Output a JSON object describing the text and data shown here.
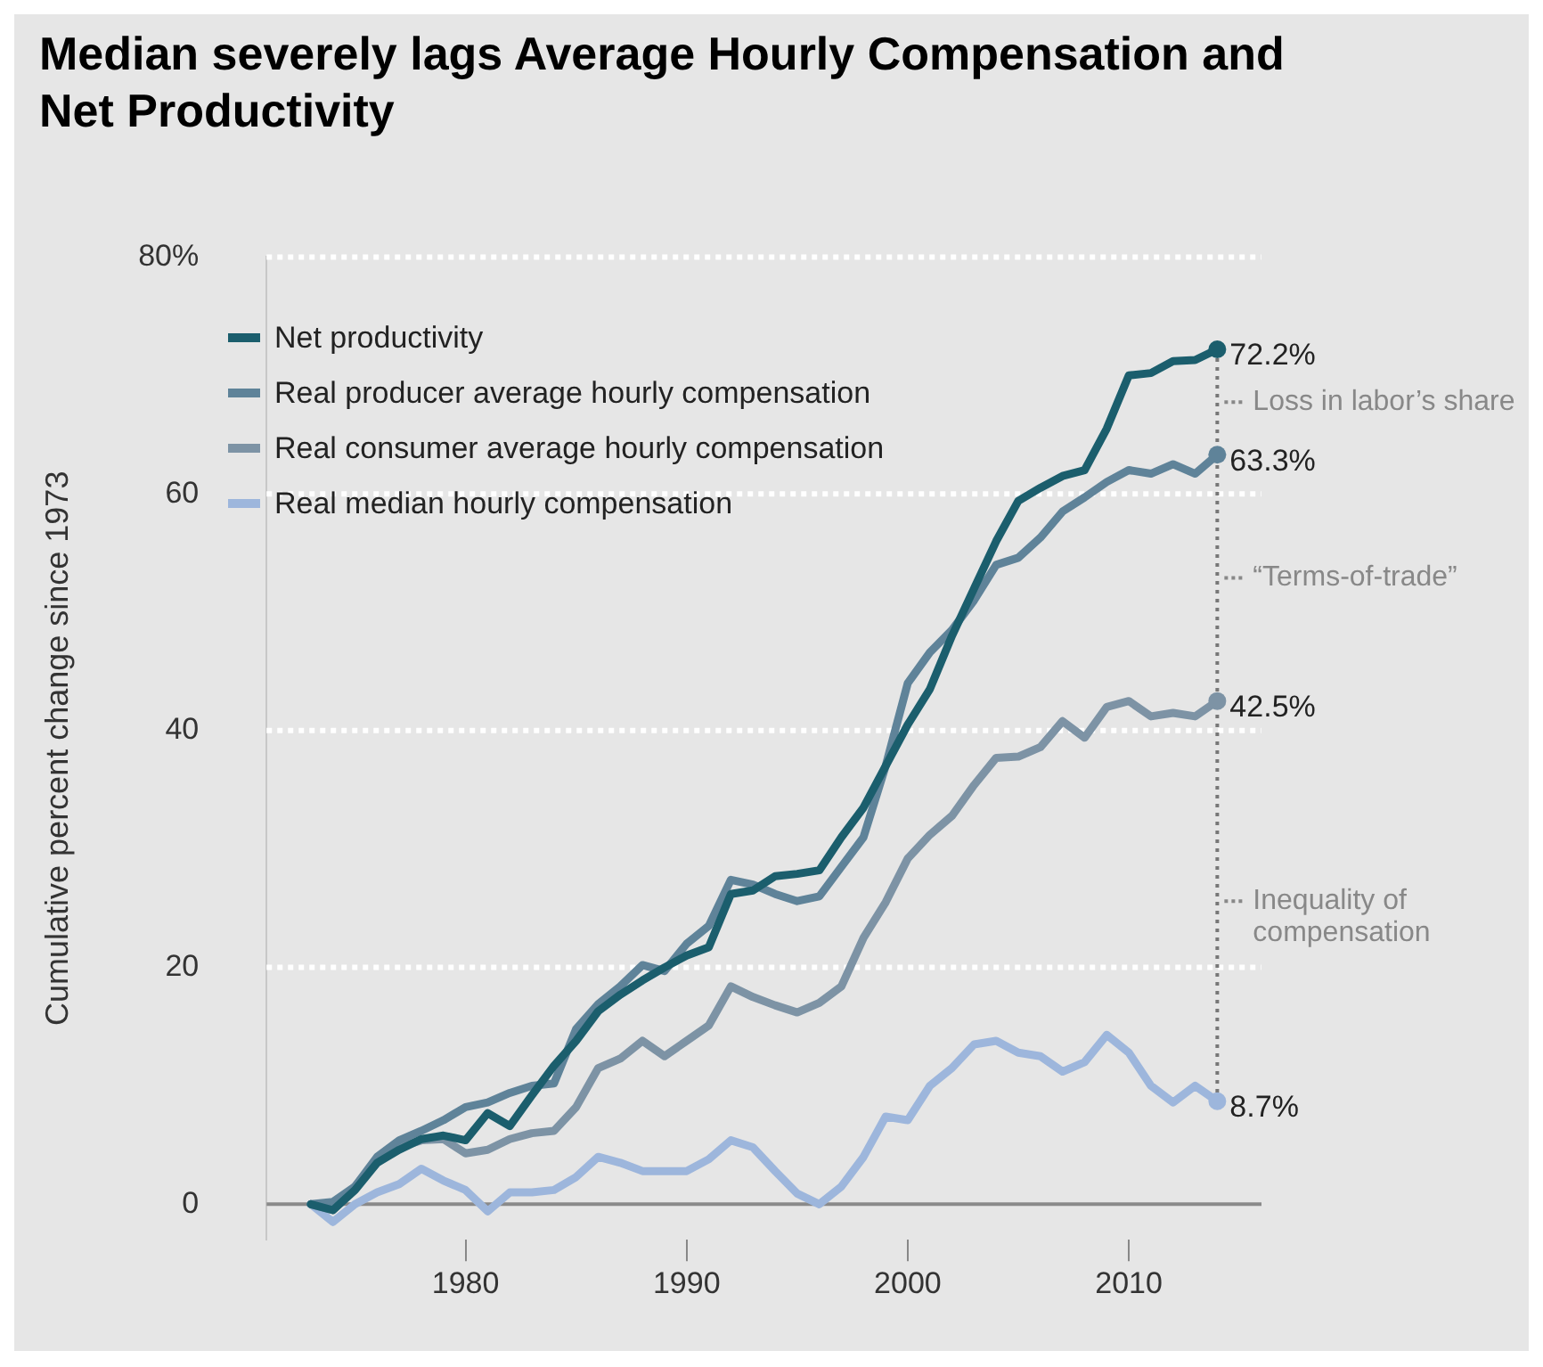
{
  "chart_data": {
    "type": "line",
    "title": "Median severely lags Average Hourly Compensation and Net Productivity",
    "ylabel": "Cumulative percent change since 1973",
    "x": [
      1973,
      1974,
      1975,
      1976,
      1977,
      1978,
      1979,
      1980,
      1981,
      1982,
      1983,
      1984,
      1985,
      1986,
      1987,
      1988,
      1989,
      1990,
      1991,
      1992,
      1993,
      1994,
      1995,
      1996,
      1997,
      1998,
      1999,
      2000,
      2001,
      2002,
      2003,
      2004,
      2005,
      2006,
      2007,
      2008,
      2009,
      2010,
      2011,
      2012,
      2013,
      2014
    ],
    "series": [
      {
        "name": "Net productivity",
        "color": "#1b5e6d",
        "values": [
          0,
          -0.5,
          1.2,
          3.5,
          4.6,
          5.5,
          5.8,
          5.4,
          7.7,
          6.6,
          9.2,
          11.7,
          13.8,
          16.3,
          17.7,
          18.9,
          20,
          21,
          21.7,
          26.2,
          26.5,
          27.7,
          27.9,
          28.2,
          31,
          33.5,
          37,
          40.5,
          43.5,
          48,
          52,
          56,
          59.4,
          60.5,
          61.5,
          62,
          65.5,
          70,
          70.2,
          71.2,
          71.3,
          72.2
        ],
        "value_labels": [
          null,
          null,
          null,
          null,
          null,
          null,
          null,
          null,
          null,
          null,
          null,
          null,
          null,
          null,
          null,
          null,
          null,
          null,
          null,
          null,
          null,
          null,
          null,
          null,
          null,
          null,
          null,
          null,
          null,
          null,
          null,
          null,
          null,
          null,
          null,
          null,
          null,
          null,
          null,
          null,
          null,
          "72.2%"
        ]
      },
      {
        "name": "Real producer average hourly compensation",
        "color": "#5f8399",
        "values": [
          0,
          0.2,
          1.5,
          4,
          5.4,
          6.2,
          7.1,
          8.2,
          8.6,
          9.4,
          10,
          10.2,
          14.8,
          16.9,
          18.4,
          20.2,
          19.7,
          22,
          23.5,
          27.4,
          27,
          26.2,
          25.6,
          26,
          28.5,
          31,
          37,
          44,
          46.6,
          48.5,
          51,
          54,
          54.6,
          56.3,
          58.5,
          59.7,
          61,
          62,
          61.7,
          62.5,
          61.7,
          63.3
        ],
        "value_labels": [
          null,
          null,
          null,
          null,
          null,
          null,
          null,
          null,
          null,
          null,
          null,
          null,
          null,
          null,
          null,
          null,
          null,
          null,
          null,
          null,
          null,
          null,
          null,
          null,
          null,
          null,
          null,
          null,
          null,
          null,
          null,
          null,
          null,
          null,
          null,
          null,
          null,
          null,
          null,
          null,
          null,
          "63.3%"
        ]
      },
      {
        "name": "Real consumer average hourly compensation",
        "color": "#7d93a5",
        "values": [
          0,
          -0.5,
          1.5,
          3.5,
          4.8,
          5.4,
          5.5,
          4.3,
          4.6,
          5.5,
          6,
          6.2,
          8.2,
          11.5,
          12.3,
          13.8,
          12.5,
          13.8,
          15.1,
          18.4,
          17.5,
          16.8,
          16.2,
          17,
          18.4,
          22.5,
          25.5,
          29.2,
          31.2,
          32.8,
          35.4,
          37.7,
          37.8,
          38.6,
          40.8,
          39.4,
          42,
          42.5,
          41.2,
          41.5,
          41.2,
          42.5
        ],
        "value_labels": [
          null,
          null,
          null,
          null,
          null,
          null,
          null,
          null,
          null,
          null,
          null,
          null,
          null,
          null,
          null,
          null,
          null,
          null,
          null,
          null,
          null,
          null,
          null,
          null,
          null,
          null,
          null,
          null,
          null,
          null,
          null,
          null,
          null,
          null,
          null,
          null,
          null,
          null,
          null,
          null,
          null,
          "42.5%"
        ]
      },
      {
        "name": "Real median hourly compensation",
        "color": "#9db6dc",
        "values": [
          0,
          -1.5,
          0,
          1,
          1.7,
          3,
          2,
          1.2,
          -0.6,
          1,
          1,
          1.2,
          2.3,
          4,
          3.5,
          2.8,
          2.8,
          2.8,
          3.8,
          5.4,
          4.8,
          2.8,
          0.9,
          0,
          1.5,
          4,
          7.4,
          7.1,
          10,
          11.5,
          13.5,
          13.8,
          12.8,
          12.5,
          11.2,
          12,
          14.3,
          12.8,
          10,
          8.6,
          10,
          8.7
        ],
        "value_labels": [
          null,
          null,
          null,
          null,
          null,
          null,
          null,
          null,
          null,
          null,
          null,
          null,
          null,
          null,
          null,
          null,
          null,
          null,
          null,
          null,
          null,
          null,
          null,
          null,
          null,
          null,
          null,
          null,
          null,
          null,
          null,
          null,
          null,
          null,
          null,
          null,
          null,
          null,
          null,
          null,
          null,
          "8.7%"
        ]
      }
    ],
    "xlim": [
      1971,
      2016
    ],
    "xticks": [
      1980,
      1990,
      2000,
      2010
    ],
    "ylim": [
      -3,
      80
    ],
    "yticks": [
      0,
      20,
      40,
      60,
      {
        "value": 80,
        "label": "80%"
      }
    ],
    "grid": "y",
    "legend": "top left",
    "line_style": "solid",
    "annotations": [
      "Loss in labor’s share",
      "“Terms-of-trade”",
      "Inequality of compensation"
    ]
  }
}
